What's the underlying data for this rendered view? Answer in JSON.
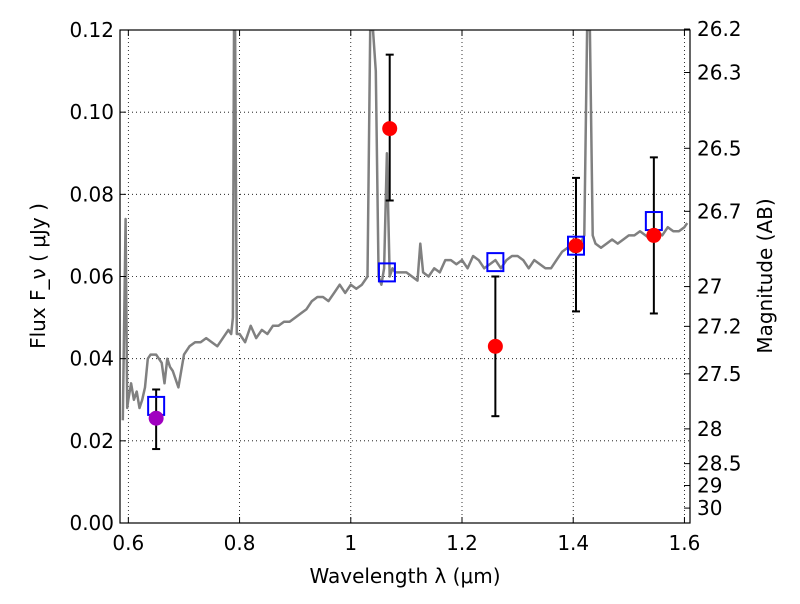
{
  "chart_data": {
    "type": "scatter",
    "xlabel": "Wavelength  λ (μm)",
    "ylabel": "Flux  F_ν  ( μJy )",
    "y2label": "Magnitude (AB)",
    "xlim": [
      0.585,
      1.61
    ],
    "ylim": [
      0.0,
      0.12
    ],
    "grid": true,
    "x_ticks": [
      {
        "value": 0.6,
        "label": "0.6"
      },
      {
        "value": 0.8,
        "label": "0.8"
      },
      {
        "value": 1.0,
        "label": "1"
      },
      {
        "value": 1.2,
        "label": "1.2"
      },
      {
        "value": 1.4,
        "label": "1.4"
      },
      {
        "value": 1.6,
        "label": "1.6"
      }
    ],
    "y_ticks": [
      {
        "value": 0.0,
        "label": "0.00"
      },
      {
        "value": 0.02,
        "label": "0.02"
      },
      {
        "value": 0.04,
        "label": "0.04"
      },
      {
        "value": 0.06,
        "label": "0.06"
      },
      {
        "value": 0.08,
        "label": "0.08"
      },
      {
        "value": 0.1,
        "label": "0.10"
      },
      {
        "value": 0.12,
        "label": "0.12"
      }
    ],
    "y2_ticks": [
      {
        "mag": 26.2,
        "label": "26.2"
      },
      {
        "mag": 26.3,
        "label": "26.3"
      },
      {
        "mag": 26.5,
        "label": "26.5"
      },
      {
        "mag": 26.7,
        "label": "26.7"
      },
      {
        "mag": 27.0,
        "label": "27"
      },
      {
        "mag": 27.2,
        "label": "27.2"
      },
      {
        "mag": 27.5,
        "label": "27.5"
      },
      {
        "mag": 28.0,
        "label": "28"
      },
      {
        "mag": 28.5,
        "label": "28.5"
      },
      {
        "mag": 29.0,
        "label": "29"
      },
      {
        "mag": 30.0,
        "label": "30"
      }
    ],
    "series": [
      {
        "kind": "line",
        "color": "#808080",
        "x": [
          0.59,
          0.595,
          0.598,
          0.6,
          0.605,
          0.61,
          0.615,
          0.62,
          0.625,
          0.63,
          0.635,
          0.64,
          0.65,
          0.66,
          0.665,
          0.67,
          0.675,
          0.68,
          0.69,
          0.7,
          0.71,
          0.72,
          0.73,
          0.74,
          0.75,
          0.76,
          0.77,
          0.78,
          0.785,
          0.788,
          0.79,
          0.792,
          0.795,
          0.8,
          0.81,
          0.82,
          0.83,
          0.84,
          0.85,
          0.86,
          0.87,
          0.88,
          0.89,
          0.9,
          0.91,
          0.92,
          0.93,
          0.94,
          0.95,
          0.96,
          0.97,
          0.98,
          0.99,
          1.0,
          1.01,
          1.02,
          1.03,
          1.035,
          1.04,
          1.045,
          1.05,
          1.055,
          1.06,
          1.065,
          1.07,
          1.075,
          1.08,
          1.09,
          1.1,
          1.11,
          1.12,
          1.125,
          1.13,
          1.14,
          1.15,
          1.16,
          1.17,
          1.18,
          1.19,
          1.2,
          1.21,
          1.22,
          1.23,
          1.24,
          1.25,
          1.26,
          1.27,
          1.28,
          1.29,
          1.3,
          1.31,
          1.32,
          1.33,
          1.34,
          1.35,
          1.36,
          1.37,
          1.38,
          1.39,
          1.4,
          1.41,
          1.42,
          1.425,
          1.43,
          1.435,
          1.44,
          1.45,
          1.46,
          1.47,
          1.48,
          1.49,
          1.5,
          1.51,
          1.52,
          1.53,
          1.54,
          1.55,
          1.56,
          1.57,
          1.58,
          1.59,
          1.6,
          1.605
        ],
        "y": [
          0.025,
          0.074,
          0.028,
          0.03,
          0.034,
          0.03,
          0.032,
          0.028,
          0.03,
          0.033,
          0.04,
          0.041,
          0.041,
          0.039,
          0.034,
          0.04,
          0.038,
          0.037,
          0.033,
          0.041,
          0.043,
          0.044,
          0.044,
          0.045,
          0.044,
          0.043,
          0.045,
          0.047,
          0.046,
          0.05,
          0.12,
          0.12,
          0.046,
          0.046,
          0.044,
          0.048,
          0.045,
          0.047,
          0.046,
          0.048,
          0.048,
          0.049,
          0.049,
          0.05,
          0.051,
          0.052,
          0.054,
          0.055,
          0.055,
          0.054,
          0.056,
          0.058,
          0.056,
          0.058,
          0.057,
          0.058,
          0.06,
          0.12,
          0.12,
          0.11,
          0.06,
          0.058,
          0.062,
          0.09,
          0.06,
          0.062,
          0.061,
          0.061,
          0.061,
          0.06,
          0.059,
          0.068,
          0.061,
          0.06,
          0.062,
          0.061,
          0.064,
          0.064,
          0.063,
          0.064,
          0.062,
          0.065,
          0.064,
          0.062,
          0.063,
          0.064,
          0.062,
          0.064,
          0.065,
          0.065,
          0.064,
          0.062,
          0.064,
          0.063,
          0.062,
          0.062,
          0.064,
          0.066,
          0.067,
          0.066,
          0.067,
          0.07,
          0.12,
          0.12,
          0.07,
          0.068,
          0.067,
          0.068,
          0.069,
          0.068,
          0.069,
          0.07,
          0.07,
          0.071,
          0.07,
          0.069,
          0.071,
          0.07,
          0.072,
          0.071,
          0.071,
          0.072,
          0.073
        ]
      },
      {
        "kind": "points-errorbar",
        "marker": "circle",
        "color": "#ff0000",
        "points": [
          {
            "x": 1.07,
            "y": 0.096,
            "yerr_low": 0.0785,
            "yerr_high": 0.114
          },
          {
            "x": 1.26,
            "y": 0.043,
            "yerr_low": 0.026,
            "yerr_high": 0.06
          },
          {
            "x": 1.405,
            "y": 0.0675,
            "yerr_low": 0.0515,
            "yerr_high": 0.084
          },
          {
            "x": 1.545,
            "y": 0.07,
            "yerr_low": 0.051,
            "yerr_high": 0.089
          }
        ]
      },
      {
        "kind": "points-errorbar",
        "marker": "circle",
        "color": "#a000c0",
        "points": [
          {
            "x": 0.65,
            "y": 0.0255,
            "yerr_low": 0.018,
            "yerr_high": 0.0325
          }
        ]
      },
      {
        "kind": "points",
        "marker": "open-square",
        "color": "#0000ff",
        "points": [
          {
            "x": 0.65,
            "y": 0.0285
          },
          {
            "x": 1.065,
            "y": 0.061
          },
          {
            "x": 1.26,
            "y": 0.0635
          },
          {
            "x": 1.405,
            "y": 0.0675
          },
          {
            "x": 1.545,
            "y": 0.0735
          }
        ]
      }
    ]
  }
}
